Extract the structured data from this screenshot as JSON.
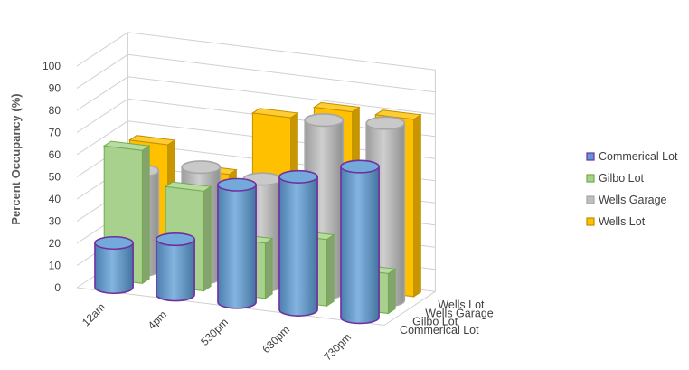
{
  "chart_data": {
    "type": "bar",
    "style": "3d-clustered-depth",
    "ylabel": "Percent Occupancy (%)",
    "xlabel": "",
    "title": "",
    "ylim": [
      0,
      100
    ],
    "yticks": [
      "0",
      "10",
      "20",
      "30",
      "40",
      "50",
      "60",
      "70",
      "80",
      "90",
      "100"
    ],
    "categories": [
      "12am",
      "4pm",
      "530pm",
      "630pm",
      "730pm"
    ],
    "grid": true,
    "legend_position": "right",
    "series": [
      {
        "name": "Commerical Lot",
        "shape": "cylinder",
        "color": "#5b9bd5",
        "outline": "#7030a0",
        "values": [
          20,
          25,
          53,
          60,
          68
        ]
      },
      {
        "name": "Gilbo Lot",
        "shape": "box",
        "color": "#a9d18e",
        "outline": "#70ad47",
        "values": [
          60,
          45,
          25,
          30,
          18
        ]
      },
      {
        "name": "Wells Garage",
        "shape": "cylinder",
        "color": "#bfbfbf",
        "outline": "#a6a6a6",
        "values": [
          45,
          50,
          48,
          78,
          80
        ]
      },
      {
        "name": "Wells Lot",
        "shape": "box",
        "color": "#ffc000",
        "outline": "#bf9000",
        "values": [
          55,
          45,
          74,
          80,
          80
        ]
      }
    ]
  }
}
